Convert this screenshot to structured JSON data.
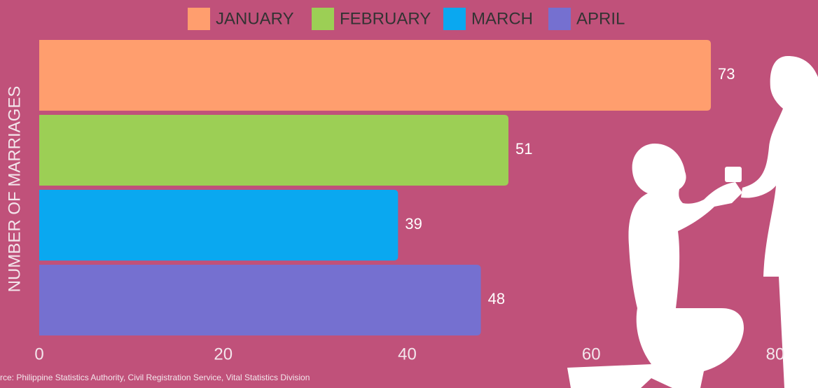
{
  "chart_data": {
    "type": "bar",
    "orientation": "horizontal",
    "categories": [
      "JANUARY",
      "FEBRUARY",
      "MARCH",
      "APRIL"
    ],
    "values": [
      73,
      51,
      39,
      48
    ],
    "colors": [
      "#ff9e6e",
      "#9ccf55",
      "#0aa8f0",
      "#7570d0"
    ],
    "ylabel": "NUMBER OF MARRIAGES",
    "xlim": [
      0,
      80
    ],
    "xticks": [
      0,
      20,
      40,
      60,
      80
    ],
    "legend": "top",
    "source": "rce: Philippine Statistics Authority, Civil Registration Service, Vital Statistics Division"
  }
}
